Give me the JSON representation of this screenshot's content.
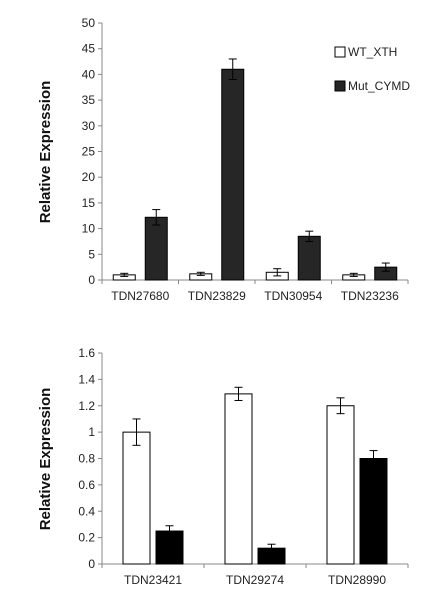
{
  "chart_data": [
    {
      "type": "bar",
      "ylabel": "Relative Expression",
      "ylim": [
        0,
        50
      ],
      "yticks": [
        0,
        5,
        10,
        15,
        20,
        25,
        30,
        35,
        40,
        45,
        50
      ],
      "categories": [
        "TDN27680",
        "TDN23829",
        "TDN30954",
        "TDN23236"
      ],
      "legend": "top-right",
      "series": [
        {
          "name": "WT_XTH",
          "color": "#ffffff",
          "values": [
            1.0,
            1.2,
            1.5,
            1.0
          ],
          "errors": [
            0.3,
            0.3,
            0.7,
            0.3
          ]
        },
        {
          "name": "Mut_CYMD",
          "color": "#262626",
          "values": [
            12.2,
            41.0,
            8.5,
            2.5
          ],
          "errors": [
            1.5,
            2.0,
            1.0,
            0.8
          ]
        }
      ]
    },
    {
      "type": "bar",
      "ylabel": "Relative Expression",
      "ylim": [
        0,
        1.6
      ],
      "yticks": [
        "0",
        "0.2",
        "0.4",
        "0.6",
        "0.8",
        "1",
        "1.2",
        "1.4",
        "1.6"
      ],
      "categories": [
        "TDN23421",
        "TDN29274",
        "TDN28990"
      ],
      "series": [
        {
          "name": "",
          "color": "#ffffff",
          "values": [
            1.0,
            1.29,
            1.2
          ],
          "errors": [
            0.1,
            0.05,
            0.06
          ]
        },
        {
          "name": "",
          "color": "#000000",
          "values": [
            0.25,
            0.12,
            0.8
          ],
          "errors": [
            0.04,
            0.03,
            0.06
          ]
        }
      ]
    }
  ]
}
